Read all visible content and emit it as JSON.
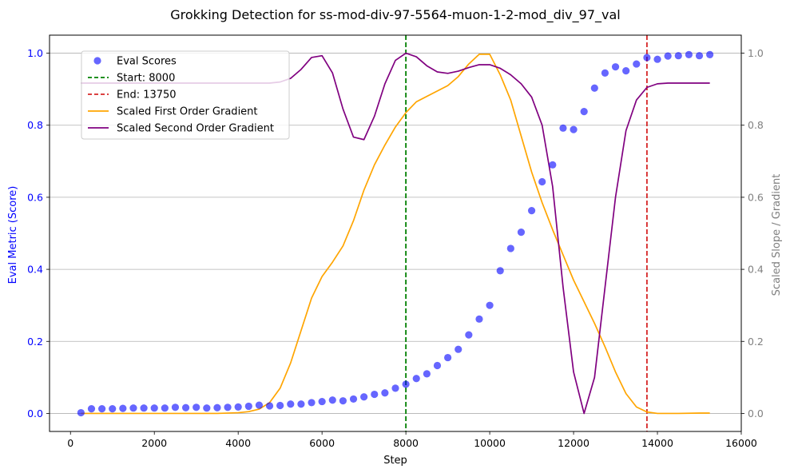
{
  "chart_data": {
    "type": "scatter",
    "title": "Grokking Detection for ss-mod-div-97-5564-muon-1-2-mod_div_97_val",
    "xlabel": "Step",
    "ylabel": "Eval Metric (Score)",
    "y2label": "Scaled Slope / Gradient",
    "xlim": [
      -500,
      16000
    ],
    "ylim": [
      -0.05,
      1.05
    ],
    "y2lim": [
      -0.05,
      1.05
    ],
    "xticks": [
      0,
      2000,
      4000,
      6000,
      8000,
      10000,
      12000,
      14000,
      16000
    ],
    "yticks": [
      0.0,
      0.2,
      0.4,
      0.6,
      0.8,
      1.0
    ],
    "y2ticks": [
      0.0,
      0.2,
      0.4,
      0.6,
      0.8,
      1.0
    ],
    "grid": "horizontal (right axis)",
    "legend_position": "upper-left",
    "colors": {
      "eval_scores": "#0000ff",
      "start": "#008000",
      "end": "#d62728",
      "first_order": "#ffa500",
      "second_order": "#800080",
      "left_axis_text": "#0000ff",
      "right_axis_text": "#808080"
    },
    "series": [
      {
        "name": "Eval Scores",
        "kind": "scatter",
        "x": [
          250,
          500,
          750,
          1000,
          1250,
          1500,
          1750,
          2000,
          2250,
          2500,
          2750,
          3000,
          3250,
          3500,
          3750,
          4000,
          4250,
          4500,
          4750,
          5000,
          5250,
          5500,
          5750,
          6000,
          6250,
          6500,
          6750,
          7000,
          7250,
          7500,
          7750,
          8000,
          8250,
          8500,
          8750,
          9000,
          9250,
          9500,
          9750,
          10000,
          10250,
          10500,
          10750,
          11000,
          11250,
          11500,
          11750,
          12000,
          12250,
          12500,
          12750,
          13000,
          13250,
          13500,
          13750,
          14000,
          14250,
          14500,
          14750,
          15000,
          15250
        ],
        "y": [
          0.002,
          0.013,
          0.013,
          0.013,
          0.014,
          0.015,
          0.015,
          0.015,
          0.015,
          0.017,
          0.016,
          0.017,
          0.015,
          0.016,
          0.017,
          0.018,
          0.02,
          0.023,
          0.021,
          0.022,
          0.026,
          0.026,
          0.03,
          0.033,
          0.037,
          0.035,
          0.04,
          0.046,
          0.053,
          0.057,
          0.07,
          0.081,
          0.097,
          0.11,
          0.133,
          0.155,
          0.178,
          0.218,
          0.262,
          0.3,
          0.396,
          0.458,
          0.503,
          0.563,
          0.643,
          0.69,
          0.792,
          0.788,
          0.838,
          0.903,
          0.945,
          0.962,
          0.951,
          0.97,
          0.988,
          0.983,
          0.992,
          0.993,
          0.996,
          0.993,
          0.996
        ]
      },
      {
        "name": "Scaled First Order Gradient",
        "kind": "line",
        "x": [
          250,
          500,
          1000,
          1500,
          2000,
          2500,
          3000,
          3500,
          4000,
          4250,
          4500,
          4750,
          5000,
          5250,
          5500,
          5750,
          6000,
          6250,
          6500,
          6750,
          7000,
          7250,
          7500,
          7750,
          8000,
          8250,
          8500,
          8750,
          9000,
          9250,
          9500,
          9750,
          10000,
          10250,
          10500,
          10750,
          11000,
          11250,
          11500,
          11750,
          12000,
          12250,
          12500,
          12750,
          13000,
          13250,
          13500,
          13750,
          14000,
          14250,
          14500,
          15000,
          15250
        ],
        "y": [
          0.0,
          0.0,
          0.0,
          0.0,
          0.0,
          0.0,
          0.0,
          0.0,
          0.002,
          0.005,
          0.012,
          0.03,
          0.07,
          0.14,
          0.23,
          0.32,
          0.38,
          0.42,
          0.465,
          0.535,
          0.62,
          0.69,
          0.745,
          0.795,
          0.835,
          0.865,
          0.88,
          0.895,
          0.91,
          0.935,
          0.97,
          0.997,
          0.997,
          0.94,
          0.87,
          0.77,
          0.67,
          0.585,
          0.51,
          0.44,
          0.37,
          0.31,
          0.25,
          0.185,
          0.115,
          0.055,
          0.018,
          0.004,
          0.0,
          0.0,
          0.0,
          0.001,
          0.001
        ]
      },
      {
        "name": "Scaled Second Order Gradient",
        "kind": "line",
        "x": [
          250,
          500,
          1000,
          1500,
          2000,
          2500,
          3000,
          3500,
          4000,
          4500,
          4750,
          5000,
          5250,
          5500,
          5750,
          6000,
          6250,
          6500,
          6750,
          7000,
          7250,
          7500,
          7750,
          8000,
          8250,
          8500,
          8750,
          9000,
          9250,
          9500,
          9750,
          10000,
          10250,
          10500,
          10750,
          11000,
          11250,
          11500,
          11750,
          12000,
          12250,
          12500,
          12750,
          13000,
          13250,
          13500,
          13750,
          14000,
          14250,
          14500,
          15000,
          15250
        ],
        "y": [
          0.917,
          0.917,
          0.917,
          0.917,
          0.917,
          0.917,
          0.917,
          0.917,
          0.917,
          0.917,
          0.917,
          0.92,
          0.93,
          0.955,
          0.988,
          0.993,
          0.945,
          0.845,
          0.767,
          0.76,
          0.825,
          0.915,
          0.98,
          1.0,
          0.99,
          0.965,
          0.948,
          0.944,
          0.95,
          0.96,
          0.968,
          0.968,
          0.958,
          0.94,
          0.915,
          0.878,
          0.8,
          0.63,
          0.35,
          0.115,
          0.0,
          0.1,
          0.35,
          0.6,
          0.785,
          0.87,
          0.905,
          0.915,
          0.917,
          0.917,
          0.917,
          0.917
        ]
      }
    ],
    "annotations": [
      {
        "name": "Start: 8000",
        "kind": "vline",
        "x": 8000
      },
      {
        "name": "End: 13750",
        "kind": "vline",
        "x": 13750
      }
    ]
  }
}
